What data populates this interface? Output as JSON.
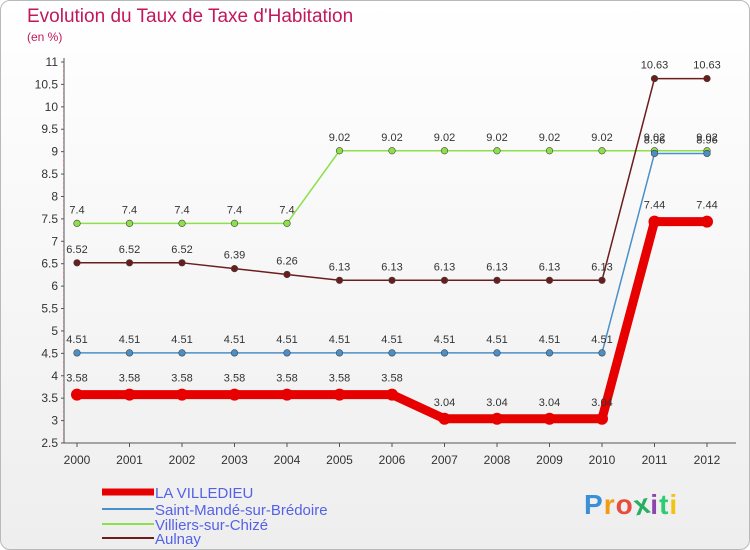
{
  "chart_data": {
    "type": "line",
    "title": "Evolution du Taux de Taxe d'Habitation",
    "ylabel": "(en %)",
    "xlabel": "",
    "ylim": [
      2.5,
      11
    ],
    "yticks": [
      "2.5",
      "3",
      "3.5",
      "4",
      "4.5",
      "5",
      "5.5",
      "6",
      "6.5",
      "7",
      "7.5",
      "8",
      "8.5",
      "9",
      "9.5",
      "10",
      "10.5",
      "11"
    ],
    "categories": [
      "2000",
      "2001",
      "2002",
      "2003",
      "2004",
      "2005",
      "2006",
      "2007",
      "2008",
      "2009",
      "2010",
      "2011",
      "2012"
    ],
    "grid": false,
    "legend_position": "bottom-left",
    "series": [
      {
        "name": "LA VILLEDIEU",
        "color": "#e60000",
        "values": [
          3.58,
          3.58,
          3.58,
          3.58,
          3.58,
          3.58,
          3.58,
          3.04,
          3.04,
          3.04,
          3.04,
          7.44,
          7.44
        ],
        "labels": [
          "3.58",
          "3.58",
          "3.58",
          "3.58",
          "3.58",
          "3.58",
          "3.58",
          "3.04",
          "3.04",
          "3.04",
          "3.04",
          "7.44",
          "7.44"
        ]
      },
      {
        "name": "Saint-Mandé-sur-Brédoire",
        "color": "#4b8fc9",
        "values": [
          4.51,
          4.51,
          4.51,
          4.51,
          4.51,
          4.51,
          4.51,
          4.51,
          4.51,
          4.51,
          4.51,
          8.96,
          8.96
        ],
        "labels": [
          "4.51",
          "4.51",
          "4.51",
          "4.51",
          "4.51",
          "4.51",
          "4.51",
          "4.51",
          "4.51",
          "4.51",
          "4.51",
          "8.96",
          "8.96"
        ]
      },
      {
        "name": "Villiers-sur-Chizé",
        "color": "#8ee04a",
        "values": [
          7.4,
          7.4,
          7.4,
          7.4,
          7.4,
          9.02,
          9.02,
          9.02,
          9.02,
          9.02,
          9.02,
          9.02,
          9.02
        ],
        "labels": [
          "7.4",
          "7.4",
          "7.4",
          "7.4",
          "7.4",
          "9.02",
          "9.02",
          "9.02",
          "9.02",
          "9.02",
          "9.02",
          "9.02",
          "9.02"
        ]
      },
      {
        "name": "Aulnay",
        "color": "#6b1d1d",
        "values": [
          6.52,
          6.52,
          6.52,
          6.39,
          6.26,
          6.13,
          6.13,
          6.13,
          6.13,
          6.13,
          6.13,
          10.63,
          10.63
        ],
        "labels": [
          "6.52",
          "6.52",
          "6.52",
          "6.39",
          "6.26",
          "6.13",
          "6.13",
          "6.13",
          "6.13",
          "6.13",
          "6.13",
          "10.63",
          "10.63"
        ]
      }
    ]
  },
  "branding": {
    "logo_text": "Proxiti"
  }
}
